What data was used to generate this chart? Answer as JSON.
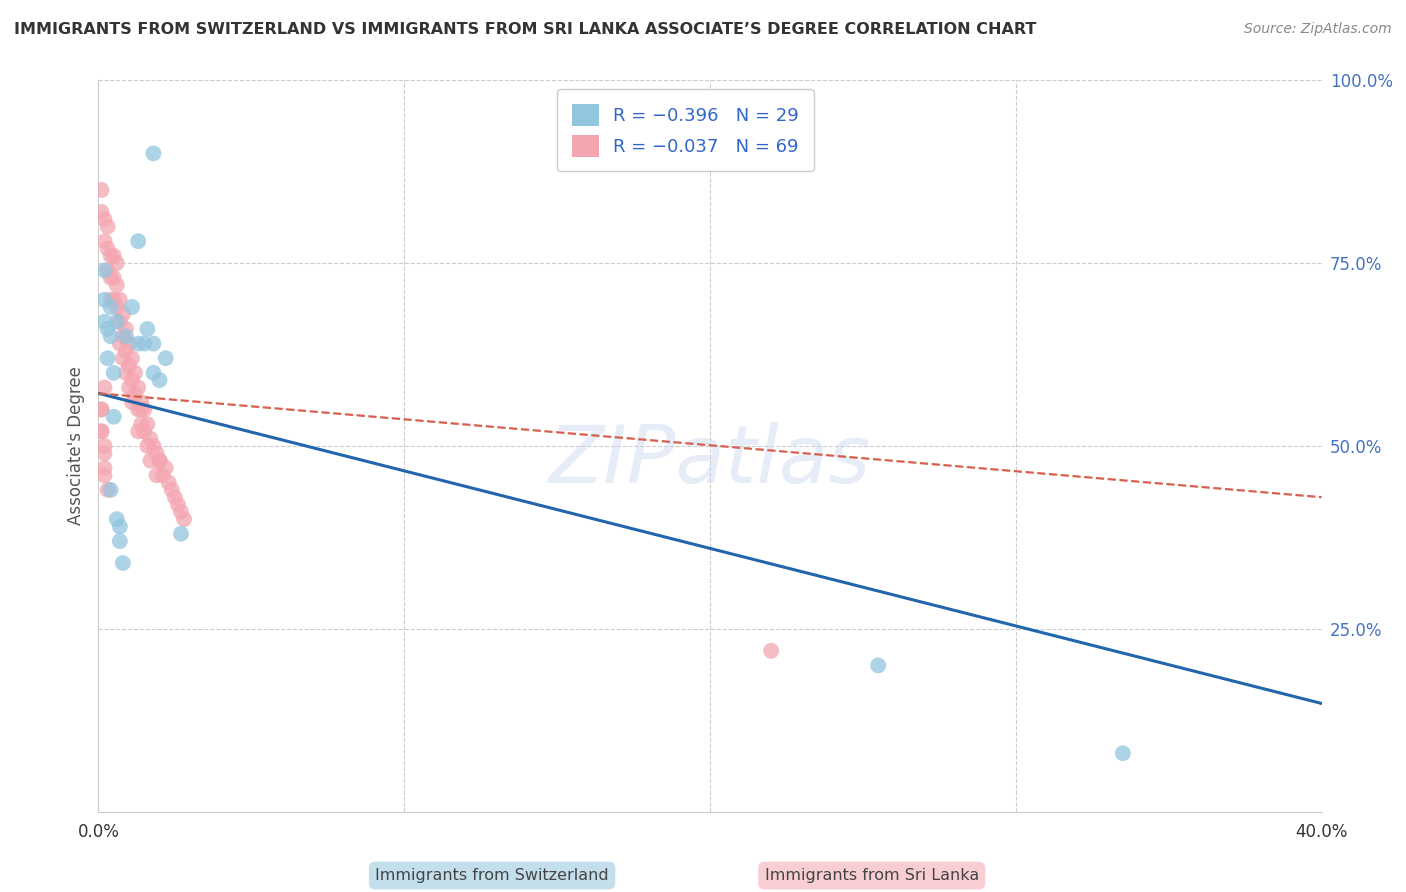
{
  "title": "IMMIGRANTS FROM SWITZERLAND VS IMMIGRANTS FROM SRI LANKA ASSOCIATE’S DEGREE CORRELATION CHART",
  "source": "Source: ZipAtlas.com",
  "ylabel": "Associate's Degree",
  "legend_blue_label": "R = −0.396   N = 29",
  "legend_pink_label": "R = −0.037   N = 69",
  "bottom_label_blue": "Immigrants from Switzerland",
  "bottom_label_pink": "Immigrants from Sri Lanka",
  "blue_color": "#92c5de",
  "pink_color": "#f4a6b0",
  "blue_trend_color": "#2166ac",
  "pink_trend_color": "#d6604d",
  "watermark": "ZIPatlas",
  "blue_scatter_x": [
    0.004,
    0.018,
    0.013,
    0.004,
    0.002,
    0.002,
    0.002,
    0.003,
    0.003,
    0.005,
    0.005,
    0.006,
    0.009,
    0.011,
    0.013,
    0.016,
    0.018,
    0.022,
    0.027,
    0.004,
    0.007,
    0.006,
    0.007,
    0.008,
    0.015,
    0.02,
    0.018,
    0.255,
    0.335
  ],
  "blue_scatter_y": [
    0.65,
    0.9,
    0.78,
    0.69,
    0.74,
    0.7,
    0.67,
    0.62,
    0.66,
    0.6,
    0.54,
    0.67,
    0.65,
    0.69,
    0.64,
    0.66,
    0.6,
    0.62,
    0.38,
    0.44,
    0.39,
    0.4,
    0.37,
    0.34,
    0.64,
    0.59,
    0.64,
    0.2,
    0.08
  ],
  "pink_scatter_x": [
    0.001,
    0.001,
    0.002,
    0.002,
    0.003,
    0.003,
    0.003,
    0.004,
    0.004,
    0.004,
    0.005,
    0.005,
    0.005,
    0.006,
    0.006,
    0.006,
    0.007,
    0.007,
    0.007,
    0.008,
    0.008,
    0.008,
    0.009,
    0.009,
    0.009,
    0.01,
    0.01,
    0.01,
    0.011,
    0.011,
    0.011,
    0.012,
    0.012,
    0.013,
    0.013,
    0.013,
    0.014,
    0.014,
    0.015,
    0.015,
    0.016,
    0.016,
    0.017,
    0.017,
    0.018,
    0.019,
    0.019,
    0.02,
    0.021,
    0.022,
    0.023,
    0.024,
    0.025,
    0.026,
    0.027,
    0.028,
    0.001,
    0.001,
    0.002,
    0.002,
    0.003,
    0.014,
    0.02,
    0.002,
    0.001,
    0.001,
    0.002,
    0.002,
    0.22
  ],
  "pink_scatter_y": [
    0.85,
    0.82,
    0.81,
    0.78,
    0.8,
    0.77,
    0.74,
    0.76,
    0.73,
    0.7,
    0.76,
    0.73,
    0.7,
    0.75,
    0.72,
    0.69,
    0.7,
    0.67,
    0.64,
    0.68,
    0.65,
    0.62,
    0.66,
    0.63,
    0.6,
    0.64,
    0.61,
    0.58,
    0.62,
    0.59,
    0.56,
    0.6,
    0.57,
    0.58,
    0.55,
    0.52,
    0.56,
    0.53,
    0.55,
    0.52,
    0.53,
    0.5,
    0.51,
    0.48,
    0.5,
    0.49,
    0.46,
    0.48,
    0.46,
    0.47,
    0.45,
    0.44,
    0.43,
    0.42,
    0.41,
    0.4,
    0.55,
    0.52,
    0.5,
    0.47,
    0.44,
    0.55,
    0.48,
    0.58,
    0.55,
    0.52,
    0.49,
    0.46,
    0.22
  ],
  "blue_trend_x": [
    0.0,
    0.4
  ],
  "blue_trend_y": [
    0.572,
    0.148
  ],
  "pink_trend_x": [
    0.0,
    0.4
  ],
  "pink_trend_y": [
    0.572,
    0.43
  ],
  "xlim": [
    0,
    0.4
  ],
  "ylim": [
    0,
    1.0
  ],
  "background_color": "#ffffff",
  "grid_color": "#cccccc"
}
